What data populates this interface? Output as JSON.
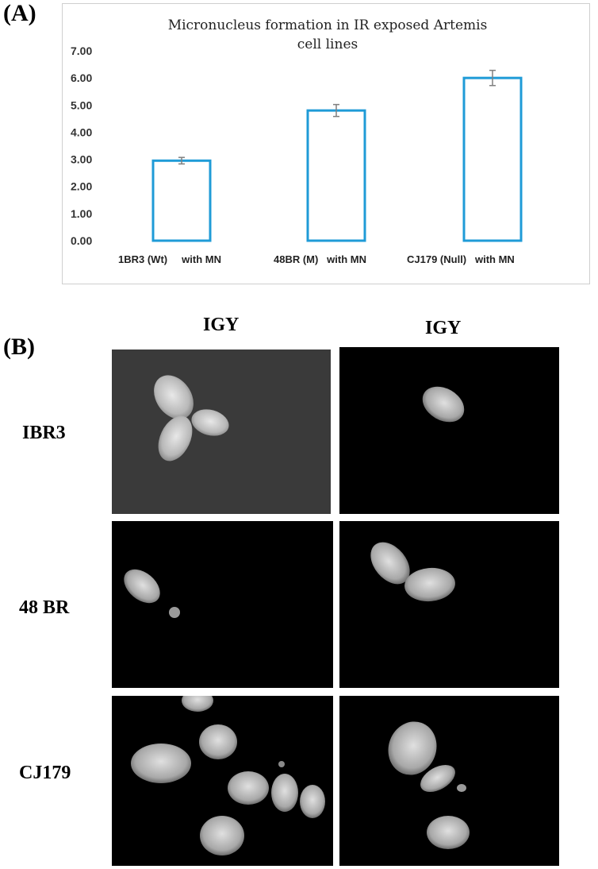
{
  "panel_a_label": "(A)",
  "panel_b_label": "(B)",
  "chart_data": {
    "type": "bar",
    "title": "Micronucleus formation in IR exposed Artemis cell lines",
    "title_lines": [
      "Micronucleus formation in IR exposed Artemis",
      "cell lines"
    ],
    "categories": [
      "1BR3 (Wt)     with MN",
      "48BR (M)   with MN",
      "CJ179 (Null)   with MN"
    ],
    "values": [
      2.95,
      4.8,
      6.0
    ],
    "errors": [
      0.12,
      0.22,
      0.28
    ],
    "yticks": [
      "0.00",
      "1.00",
      "2.00",
      "3.00",
      "4.00",
      "5.00",
      "6.00",
      "7.00"
    ],
    "ylim": [
      0,
      7
    ],
    "xlabel": "",
    "ylabel": "",
    "grid": false,
    "bar_style": "outline",
    "bar_color": "#1f9bd7",
    "error_color": "#7f7f7f"
  },
  "panel_b": {
    "column_headers": [
      "IGY",
      "IGY"
    ],
    "rows": [
      {
        "label": "IBR3"
      },
      {
        "label": "48 BR"
      },
      {
        "label": "CJ179"
      }
    ]
  }
}
